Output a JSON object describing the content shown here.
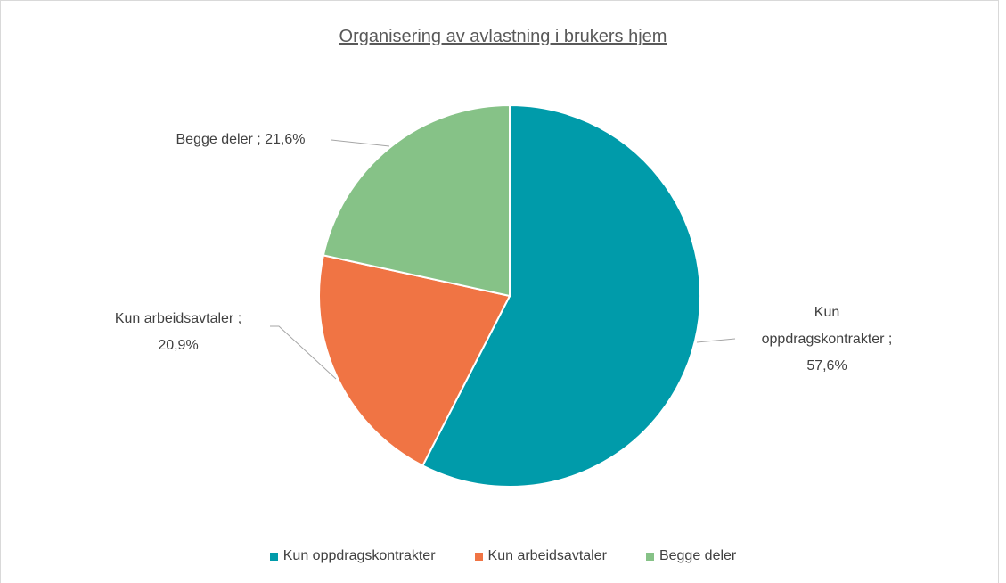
{
  "chart_data": {
    "type": "pie",
    "title": "Organisering av avlastning i brukers hjem",
    "categories": [
      "Kun oppdragskontrakter",
      "Kun arbeidsavtaler",
      "Begge deler"
    ],
    "values": [
      57.6,
      20.9,
      21.6
    ],
    "value_labels": [
      "Kun oppdragskontrakter ; 57,6%",
      "Kun arbeidsavtaler ; 20,9%",
      "Begge deler ; 21,6%"
    ],
    "colors": [
      "#009baa",
      "#f07444",
      "#86c287"
    ],
    "legend": "bottom"
  }
}
